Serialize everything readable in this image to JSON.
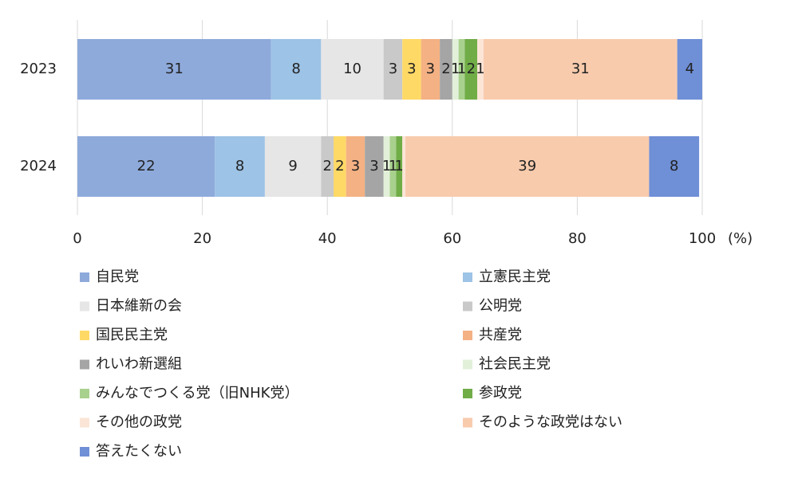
{
  "chart_data": {
    "type": "stacked-bar-horizontal",
    "categories": [
      "2023",
      "2024"
    ],
    "xlim": [
      0,
      100
    ],
    "xticks": [
      0,
      20,
      40,
      60,
      80,
      100
    ],
    "x_unit": "(%)",
    "grid": true,
    "series": [
      {
        "name": "自民党",
        "color": "#8eaadb",
        "values": [
          31,
          22
        ]
      },
      {
        "name": "立憲民主党",
        "color": "#9dc3e6",
        "values": [
          8,
          8
        ]
      },
      {
        "name": "日本維新の会",
        "color": "#e7e6e6",
        "values": [
          10,
          9
        ]
      },
      {
        "name": "公明党",
        "color": "#c9c9c9",
        "values": [
          3,
          2
        ]
      },
      {
        "name": "国民民主党",
        "color": "#ffd966",
        "values": [
          3,
          2
        ]
      },
      {
        "name": "共産党",
        "color": "#f4b183",
        "values": [
          3,
          3
        ]
      },
      {
        "name": "れいわ新選組",
        "color": "#a5a5a5",
        "values": [
          2,
          3
        ]
      },
      {
        "name": "社会民主党",
        "color": "#e2f0d9",
        "values": [
          1,
          1
        ]
      },
      {
        "name": "みんなでつくる党（旧NHK党）",
        "color": "#a9d18e",
        "values": [
          1,
          1
        ]
      },
      {
        "name": "参政党",
        "color": "#70ad47",
        "values": [
          2,
          1
        ]
      },
      {
        "name": "その他の政党",
        "color": "#fbe5d6",
        "values": [
          1,
          0.5
        ],
        "value_labels": [
          "1",
          null
        ]
      },
      {
        "name": "そのような政党はない",
        "color": "#f8cbad",
        "values": [
          31,
          39
        ]
      },
      {
        "name": "答えたくない",
        "color": "#6f8fd6",
        "values": [
          4,
          8
        ]
      }
    ]
  }
}
